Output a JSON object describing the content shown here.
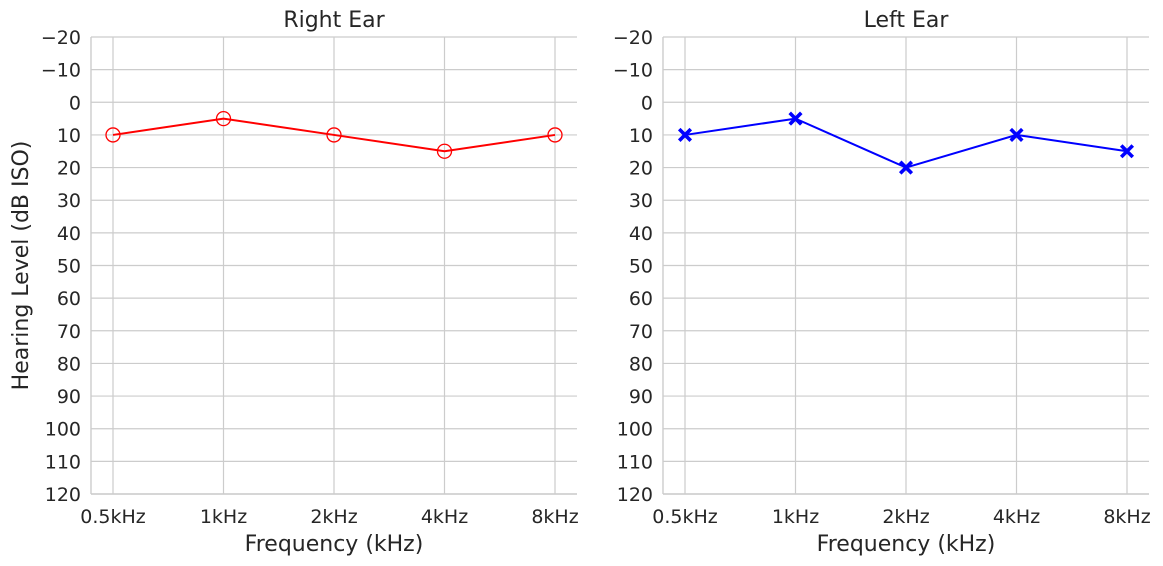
{
  "chart_data": [
    {
      "type": "line",
      "title": "Right Ear",
      "xlabel": "Frequency (kHz)",
      "ylabel": "Hearing Level (dB ISO)",
      "categories": [
        "0.5kHz",
        "1kHz",
        "2kHz",
        "4kHz",
        "8kHz"
      ],
      "ylim": [
        -20,
        120
      ],
      "y_inverted": true,
      "yticks": [
        -20,
        -10,
        0,
        10,
        20,
        30,
        40,
        50,
        60,
        70,
        80,
        90,
        100,
        110,
        120
      ],
      "grid": true,
      "series": [
        {
          "values": [
            10,
            5,
            10,
            15,
            10
          ],
          "color": "#ff0000",
          "marker": "circle-open"
        }
      ]
    },
    {
      "type": "line",
      "title": "Left Ear",
      "xlabel": "Frequency (kHz)",
      "ylabel": "",
      "categories": [
        "0.5kHz",
        "1kHz",
        "2kHz",
        "4kHz",
        "8kHz"
      ],
      "ylim": [
        -20,
        120
      ],
      "y_inverted": true,
      "yticks": [
        -20,
        -10,
        0,
        10,
        20,
        30,
        40,
        50,
        60,
        70,
        80,
        90,
        100,
        110,
        120
      ],
      "grid": true,
      "series": [
        {
          "values": [
            10,
            5,
            20,
            10,
            15
          ],
          "color": "#0000ff",
          "marker": "x-filled"
        }
      ]
    }
  ]
}
